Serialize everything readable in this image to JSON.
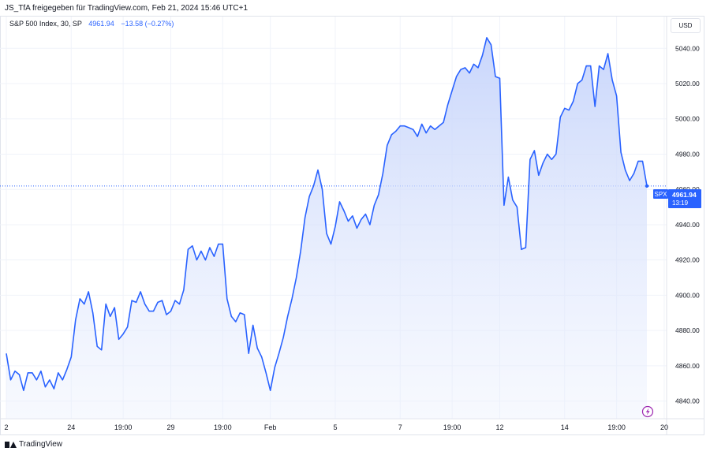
{
  "header": {
    "caption": "JS_TfA freigegeben für TradingView.com, Feb 21, 2024 15:46 UTC+1"
  },
  "legend": {
    "symbol": "S&P 500 Index, 30, SP",
    "value": "4961.94",
    "change": "−13.58 (−0.27%)"
  },
  "currency_button": "USD",
  "price_tag": {
    "symbol": "SPX",
    "price": "4961.94",
    "countdown": "13:19"
  },
  "footer": {
    "brand": "TradingView"
  },
  "colors": {
    "line": "#2962ff",
    "fill_top": "#c9d6fb",
    "grid": "#f0f3fa",
    "axis_text": "#131722"
  },
  "icons": {
    "lightning": "lightning-icon",
    "logo": "tradingview-logo-icon"
  },
  "chart_data": {
    "type": "area",
    "title": "",
    "xlabel": "",
    "ylabel": "",
    "ylim": [
      4830,
      5058
    ],
    "y_ticks": [
      "4840.00",
      "4860.00",
      "4880.00",
      "4900.00",
      "4920.00",
      "4940.00",
      "4960.00",
      "4980.00",
      "5000.00",
      "5020.00",
      "5040.00"
    ],
    "x_ticks": [
      {
        "label": "2",
        "index": 0
      },
      {
        "label": "24",
        "index": 15
      },
      {
        "label": "19:00",
        "index": 27
      },
      {
        "label": "29",
        "index": 38
      },
      {
        "label": "19:00",
        "index": 50
      },
      {
        "label": "Feb",
        "index": 61
      },
      {
        "label": "5",
        "index": 76
      },
      {
        "label": "7",
        "index": 91
      },
      {
        "label": "19:00",
        "index": 103
      },
      {
        "label": "12",
        "index": 114
      },
      {
        "label": "14",
        "index": 129
      },
      {
        "label": "19:00",
        "index": 141
      },
      {
        "label": "20",
        "index": 152
      }
    ],
    "series": [
      {
        "values": [
          4867,
          4852,
          4857,
          4855,
          4846,
          4856,
          4856,
          4852,
          4857,
          4848,
          4852,
          4847,
          4856,
          4852,
          4858,
          4865,
          4886,
          4898,
          4895,
          4902,
          4890,
          4871,
          4869,
          4895,
          4888,
          4893,
          4875,
          4878,
          4882,
          4897,
          4896,
          4902,
          4895,
          4891,
          4891,
          4896,
          4897,
          4889,
          4891,
          4897,
          4895,
          4903,
          4926,
          4928,
          4920,
          4925,
          4920,
          4927,
          4922,
          4929,
          4929,
          4898,
          4888,
          4885,
          4890,
          4889,
          4867,
          4883,
          4870,
          4865,
          4856,
          4846,
          4859,
          4867,
          4876,
          4888,
          4898,
          4910,
          4925,
          4944,
          4956,
          4962,
          4971,
          4960,
          4935,
          4929,
          4939,
          4953,
          4948,
          4942,
          4945,
          4938,
          4943,
          4946,
          4940,
          4951,
          4957,
          4969,
          4985,
          4991,
          4993,
          4996,
          4996,
          4995,
          4994,
          4990,
          4997,
          4992,
          4996,
          4994,
          4996,
          4998,
          5008,
          5016,
          5024,
          5028,
          5029,
          5026,
          5031,
          5029,
          5036,
          5046,
          5042,
          5024,
          5023,
          4951,
          4967,
          4954,
          4950,
          4926,
          4927,
          4977,
          4982,
          4968,
          4975,
          4980,
          4977,
          4980,
          5001,
          5006,
          5005,
          5010,
          5020,
          5022,
          5030,
          5030,
          5007,
          5030,
          5028,
          5037,
          5022,
          5013,
          4981,
          4971,
          4965,
          4969,
          4976,
          4976,
          4962
        ],
        "x_pixels_note": ""
      }
    ],
    "last_value": 4961.94,
    "grid": true,
    "legend": "top-left"
  }
}
